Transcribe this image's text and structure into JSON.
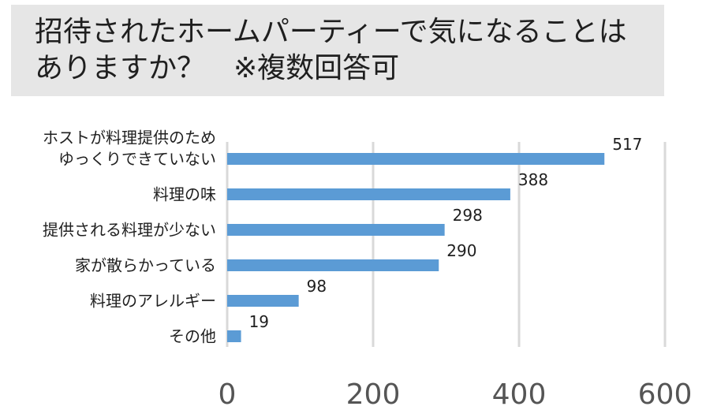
{
  "title_lines": [
    "招待されたホームパーティーで気になることは",
    "ありますか？　※複数回答可"
  ],
  "chart_data": {
    "type": "bar",
    "orientation": "horizontal",
    "title": "招待されたホームパーティーで気になることは ありますか？　※複数回答可",
    "categories": [
      [
        "ホストが料理提供のため",
        "ゆっくりできていない"
      ],
      [
        "料理の味"
      ],
      [
        "提供される料理が少ない"
      ],
      [
        "家が散らかっている"
      ],
      [
        "料理のアレルギー"
      ],
      [
        "その他"
      ]
    ],
    "values": [
      517,
      388,
      298,
      290,
      98,
      19
    ],
    "xlim": [
      0,
      600
    ],
    "xticks": [
      0,
      200,
      400,
      600
    ],
    "grid": true,
    "bar_color": "#5b9bd5",
    "grid_color": "#d9d9d9"
  }
}
